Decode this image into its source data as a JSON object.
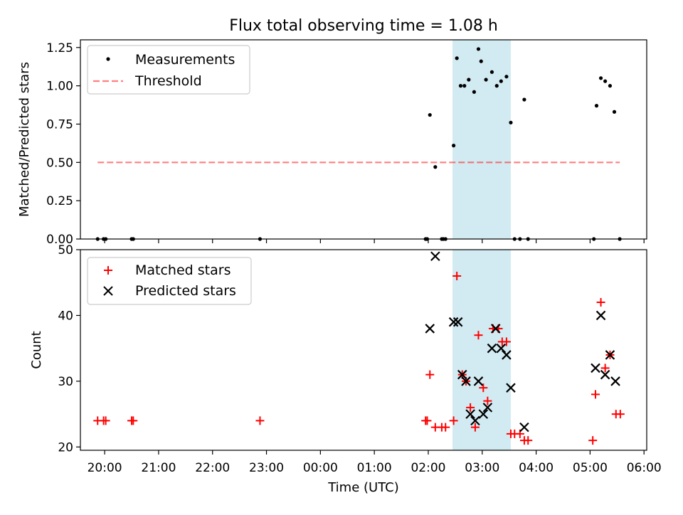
{
  "chart_data": {
    "type": "scatter",
    "title": "Flux total observing time = 1.08 h",
    "xlabel": "Time (UTC)",
    "xlim": [
      -0.45,
      10.05
    ],
    "x_ticks": [
      0,
      1,
      2,
      3,
      4,
      5,
      6,
      7,
      8,
      9,
      10
    ],
    "x_tick_labels": [
      "20:00",
      "21:00",
      "22:00",
      "23:00",
      "00:00",
      "01:00",
      "02:00",
      "03:00",
      "04:00",
      "05:00",
      "06:00"
    ],
    "shaded_span": {
      "x0": 6.45,
      "x1": 7.53,
      "color": "#add8e6"
    },
    "colors": {
      "measurement": "#000000",
      "threshold": "#ff0000",
      "matched": "#ff0000",
      "predicted": "#000000"
    },
    "panels": [
      {
        "ylabel": "Matched/Predicted stars",
        "ylim": [
          0,
          1.3
        ],
        "y_ticks": [
          0,
          0.25,
          0.5,
          0.75,
          1.0,
          1.25
        ],
        "y_tick_labels": [
          "0.00",
          "0.25",
          "0.50",
          "0.75",
          "1.00",
          "1.25"
        ],
        "legend": [
          "Measurements",
          "Threshold"
        ],
        "threshold": {
          "value": 0.5,
          "x0": -0.13,
          "x1": 9.55
        },
        "measurements": [
          [
            -0.13,
            0
          ],
          [
            -0.02,
            0
          ],
          [
            0.02,
            0
          ],
          [
            0.5,
            0
          ],
          [
            0.53,
            0
          ],
          [
            2.88,
            0
          ],
          [
            5.95,
            0
          ],
          [
            5.98,
            0
          ],
          [
            6.03,
            0.81
          ],
          [
            6.13,
            0.47
          ],
          [
            6.25,
            0
          ],
          [
            6.28,
            0
          ],
          [
            6.32,
            0
          ],
          [
            6.47,
            0.61
          ],
          [
            6.53,
            1.18
          ],
          [
            6.6,
            1.0
          ],
          [
            6.67,
            1.0
          ],
          [
            6.75,
            1.04
          ],
          [
            6.85,
            0.96
          ],
          [
            6.93,
            1.24
          ],
          [
            6.98,
            1.16
          ],
          [
            7.07,
            1.04
          ],
          [
            7.18,
            1.09
          ],
          [
            7.27,
            1.0
          ],
          [
            7.35,
            1.03
          ],
          [
            7.45,
            1.06
          ],
          [
            7.53,
            0.76
          ],
          [
            7.6,
            0
          ],
          [
            7.7,
            0
          ],
          [
            7.78,
            0.91
          ],
          [
            7.85,
            0
          ],
          [
            9.07,
            0
          ],
          [
            9.12,
            0.87
          ],
          [
            9.2,
            1.05
          ],
          [
            9.28,
            1.03
          ],
          [
            9.37,
            1.0
          ],
          [
            9.45,
            0.83
          ],
          [
            9.55,
            0
          ]
        ]
      },
      {
        "ylabel": "Count",
        "ylim": [
          19.5,
          50
        ],
        "y_ticks": [
          20,
          30,
          40,
          50
        ],
        "y_tick_labels": [
          "20",
          "30",
          "40",
          "50"
        ],
        "legend": [
          "Matched stars",
          "Predicted stars"
        ],
        "matched": [
          [
            -0.13,
            24
          ],
          [
            -0.02,
            24
          ],
          [
            0.02,
            24
          ],
          [
            0.5,
            24
          ],
          [
            0.53,
            24
          ],
          [
            2.88,
            24
          ],
          [
            5.95,
            24
          ],
          [
            5.98,
            24
          ],
          [
            6.03,
            31
          ],
          [
            6.13,
            23
          ],
          [
            6.25,
            23
          ],
          [
            6.32,
            23
          ],
          [
            6.47,
            24
          ],
          [
            6.53,
            46
          ],
          [
            6.63,
            31
          ],
          [
            6.7,
            30
          ],
          [
            6.78,
            26
          ],
          [
            6.87,
            23
          ],
          [
            6.93,
            37
          ],
          [
            7.02,
            29
          ],
          [
            7.1,
            27
          ],
          [
            7.2,
            38
          ],
          [
            7.3,
            38
          ],
          [
            7.37,
            36
          ],
          [
            7.45,
            36
          ],
          [
            7.53,
            22
          ],
          [
            7.6,
            22
          ],
          [
            7.7,
            22
          ],
          [
            7.78,
            21
          ],
          [
            7.85,
            21
          ],
          [
            9.05,
            21
          ],
          [
            9.1,
            28
          ],
          [
            9.2,
            42
          ],
          [
            9.28,
            32
          ],
          [
            9.37,
            34
          ],
          [
            9.48,
            25
          ],
          [
            9.56,
            25
          ]
        ],
        "predicted": [
          [
            6.03,
            38
          ],
          [
            6.13,
            49
          ],
          [
            6.47,
            39
          ],
          [
            6.55,
            39
          ],
          [
            6.63,
            31
          ],
          [
            6.7,
            30
          ],
          [
            6.78,
            25
          ],
          [
            6.87,
            24
          ],
          [
            6.93,
            30
          ],
          [
            7.02,
            25
          ],
          [
            7.1,
            26
          ],
          [
            7.18,
            35
          ],
          [
            7.25,
            38
          ],
          [
            7.35,
            35
          ],
          [
            7.45,
            34
          ],
          [
            7.53,
            29
          ],
          [
            7.78,
            23
          ],
          [
            9.1,
            32
          ],
          [
            9.2,
            40
          ],
          [
            9.28,
            31
          ],
          [
            9.37,
            34
          ],
          [
            9.47,
            30
          ]
        ]
      }
    ]
  }
}
